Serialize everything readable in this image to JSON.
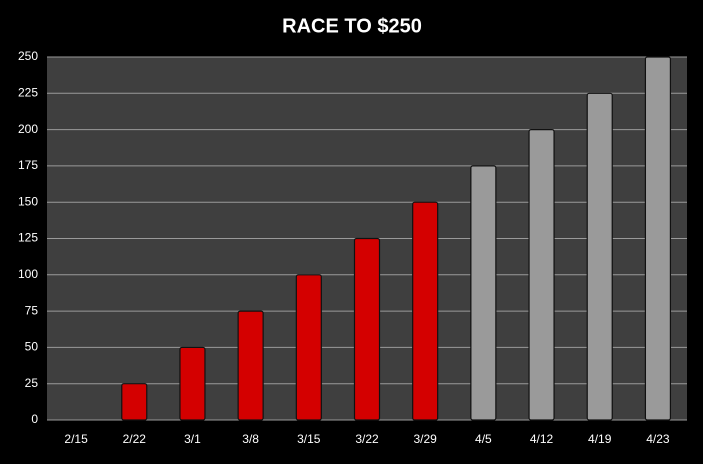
{
  "chart_data": {
    "type": "bar",
    "title": "RACE TO $250",
    "categories": [
      "2/15",
      "2/22",
      "3/1",
      "3/8",
      "3/15",
      "3/22",
      "3/29",
      "4/5",
      "4/12",
      "4/19",
      "4/23"
    ],
    "values": [
      0,
      25,
      50,
      75,
      100,
      125,
      150,
      175,
      200,
      225,
      250
    ],
    "colors": [
      "#d40000",
      "#d40000",
      "#d40000",
      "#d40000",
      "#d40000",
      "#d40000",
      "#d40000",
      "#9a9a9a",
      "#9a9a9a",
      "#9a9a9a",
      "#9a9a9a"
    ],
    "ylim": [
      0,
      250
    ],
    "yticks": [
      0,
      25,
      50,
      75,
      100,
      125,
      150,
      175,
      200,
      225,
      250
    ],
    "grid": true
  }
}
